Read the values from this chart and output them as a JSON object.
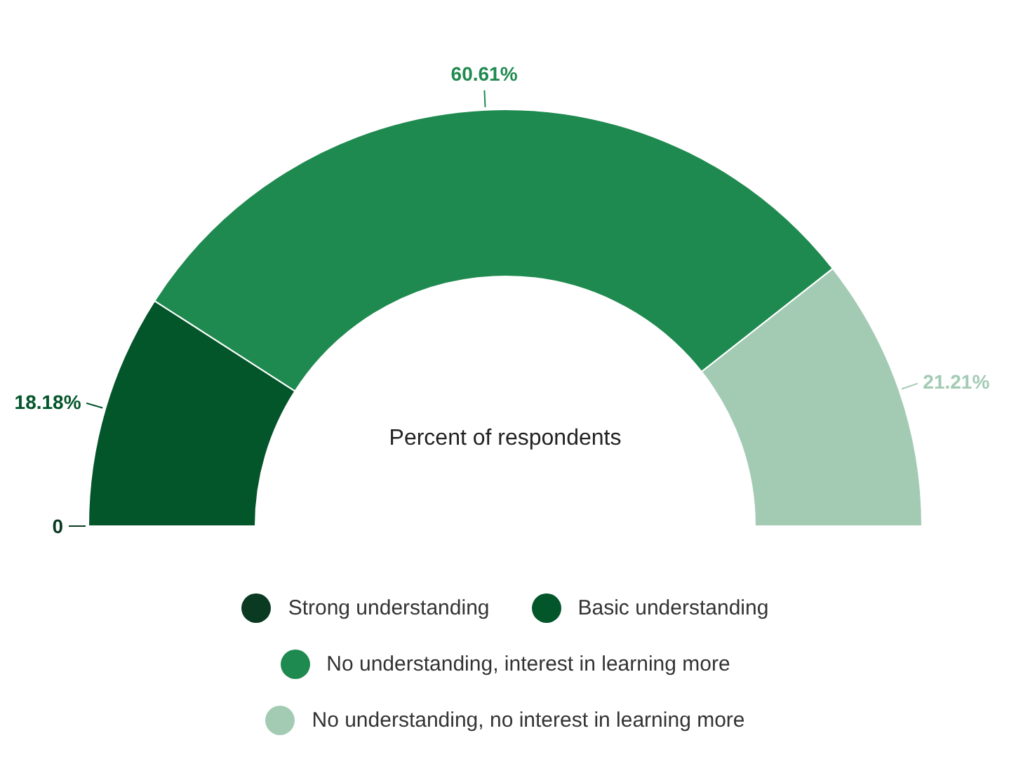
{
  "chart_data": {
    "type": "donut",
    "title": "Percent of respondents",
    "categories": [
      "Strong understanding",
      "Basic understanding",
      "No understanding, interest in learning more",
      "No understanding, no interest in learning more"
    ],
    "values": [
      0,
      18.18,
      60.61,
      21.21
    ],
    "colors": [
      "#0b3a22",
      "#03552a",
      "#1f8a4f",
      "#a3cbb4"
    ],
    "value_labels": [
      "0",
      "18.18%",
      "60.61%",
      "21.21%"
    ],
    "legend": "bottom"
  }
}
